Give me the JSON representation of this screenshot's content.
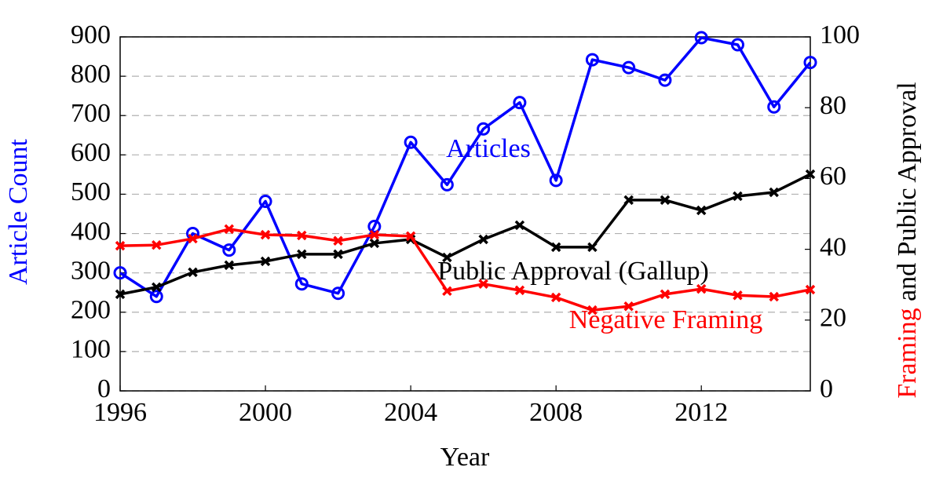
{
  "chart_data": {
    "type": "line",
    "xlabel": "Year",
    "ylabel": "Article Count",
    "ylabel_color": "#0000ff",
    "y2label": [
      {
        "text": "Framing",
        "color": "#ff0000"
      },
      {
        "text": " and Public Approval",
        "color": "#000000"
      }
    ],
    "x": [
      1996,
      1997,
      1998,
      1999,
      2000,
      2001,
      2002,
      2003,
      2004,
      2005,
      2006,
      2007,
      2008,
      2009,
      2010,
      2011,
      2012,
      2013,
      2014,
      2015
    ],
    "series": [
      {
        "name": "Articles",
        "color": "#0000ff",
        "marker": "circle",
        "values": [
          300,
          240,
          400,
          358,
          482,
          272,
          248,
          418,
          632,
          524,
          666,
          733,
          535,
          842,
          822,
          790,
          898,
          880,
          722,
          835
        ]
      },
      {
        "name": "Public Approval (Gallup)",
        "color": "#000000",
        "marker": "x",
        "axis": "y2",
        "values": [
          27.3,
          29.3,
          33.5,
          35.5,
          36.6,
          38.6,
          38.6,
          41.7,
          42.8,
          37.7,
          42.8,
          46.8,
          40.6,
          40.6,
          53.9,
          53.9,
          51,
          55,
          56.1,
          61.2
        ]
      },
      {
        "name": "Negative Framing",
        "color": "#ff0000",
        "marker": "x",
        "axis": "y2",
        "values": [
          41,
          41.2,
          43,
          45.7,
          44.1,
          43.9,
          42.4,
          44.1,
          43.7,
          28.2,
          30.2,
          28.4,
          26.4,
          22.8,
          23.9,
          27.3,
          28.8,
          27,
          26.6,
          28.6
        ]
      }
    ],
    "xlim": [
      1996,
      2015
    ],
    "xticks": [
      1996,
      2000,
      2004,
      2008,
      2012
    ],
    "ylim": [
      0,
      900
    ],
    "yticks": [
      0,
      100,
      200,
      300,
      400,
      500,
      600,
      700,
      800,
      900
    ],
    "y2lim": [
      0,
      100
    ],
    "y2ticks": [
      0,
      20,
      40,
      60,
      80,
      100
    ],
    "grid": true
  }
}
